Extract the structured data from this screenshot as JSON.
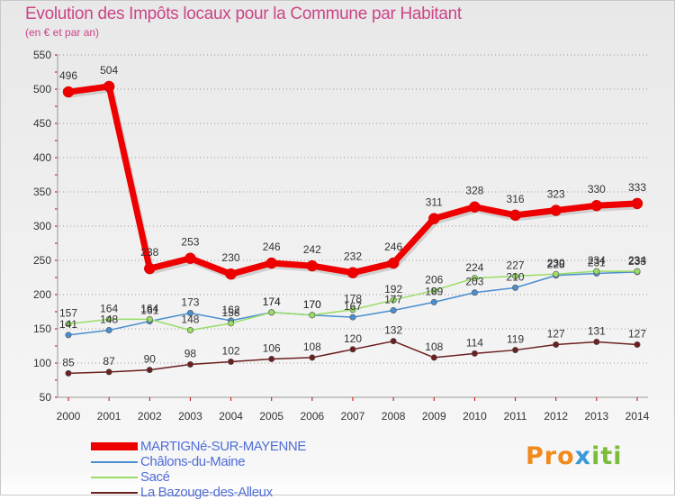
{
  "chart_data": {
    "type": "line",
    "title": "Evolution des Impôts locaux pour la Commune par Habitant",
    "subtitle": "(en € et par an)",
    "x": [
      "2000",
      "2001",
      "2002",
      "2003",
      "2004",
      "2005",
      "2006",
      "2007",
      "2008",
      "2009",
      "2010",
      "2011",
      "2012",
      "2013",
      "2014"
    ],
    "ylim": [
      50,
      550
    ],
    "yticks": [
      50,
      100,
      150,
      200,
      250,
      300,
      350,
      400,
      450,
      500,
      550
    ],
    "grid": "horizontal dotted",
    "series": [
      {
        "name": "MARTIGNé-SUR-MAYENNE",
        "color": "#ee0000",
        "values": [
          496,
          504,
          238,
          253,
          230,
          246,
          242,
          232,
          246,
          311,
          328,
          316,
          323,
          330,
          333
        ]
      },
      {
        "name": "Châlons-du-Maine",
        "color": "#4a8ed0",
        "values": [
          141,
          148,
          161,
          173,
          162,
          174,
          170,
          167,
          177,
          189,
          203,
          210,
          228,
          231,
          233
        ]
      },
      {
        "name": "Sacé",
        "color": "#99dd66",
        "values": [
          157,
          164,
          164,
          148,
          158,
          174,
          170,
          178,
          192,
          206,
          224,
          227,
          230,
          234,
          234
        ]
      },
      {
        "name": "La Bazouge-des-Alleux",
        "color": "#6b1f1f",
        "values": [
          85,
          87,
          90,
          98,
          102,
          106,
          108,
          120,
          132,
          108,
          114,
          119,
          127,
          131,
          127
        ]
      }
    ]
  },
  "brand": {
    "p1": "Pro",
    "p2": "x",
    "p3": "iti"
  }
}
